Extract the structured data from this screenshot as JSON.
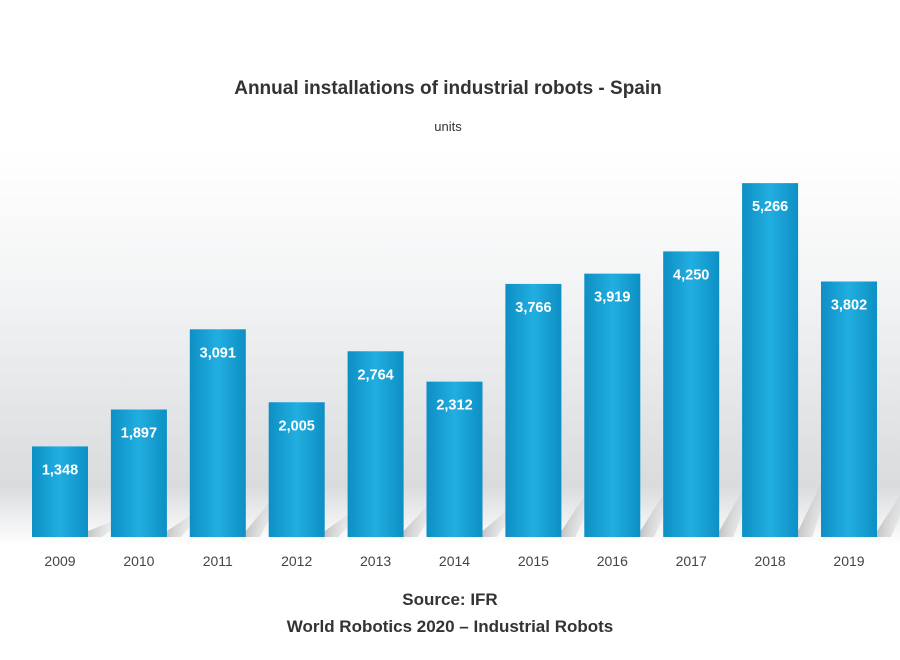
{
  "chart_data": {
    "type": "bar",
    "title": "Annual installations of industrial robots - Spain",
    "subtitle": "units",
    "categories": [
      "2009",
      "2010",
      "2011",
      "2012",
      "2013",
      "2014",
      "2015",
      "2016",
      "2017",
      "2018",
      "2019"
    ],
    "values": [
      1348,
      1897,
      3091,
      2005,
      2764,
      2312,
      3766,
      3919,
      4250,
      5266,
      3802
    ],
    "data_labels": [
      "1,348",
      "1,897",
      "3,091",
      "2,005",
      "2,764",
      "2,312",
      "3,766",
      "3,919",
      "4,250",
      "5,266",
      "3,802"
    ],
    "xlabel": "",
    "ylabel": "",
    "ylim": [
      0,
      6000
    ],
    "grid": false,
    "legend": "none",
    "bar_color": "#1aa3d4",
    "bar_color_dark": "#0a84b8"
  },
  "footer": {
    "source": "Source: IFR",
    "publication": "World Robotics 2020 – Industrial Robots"
  }
}
